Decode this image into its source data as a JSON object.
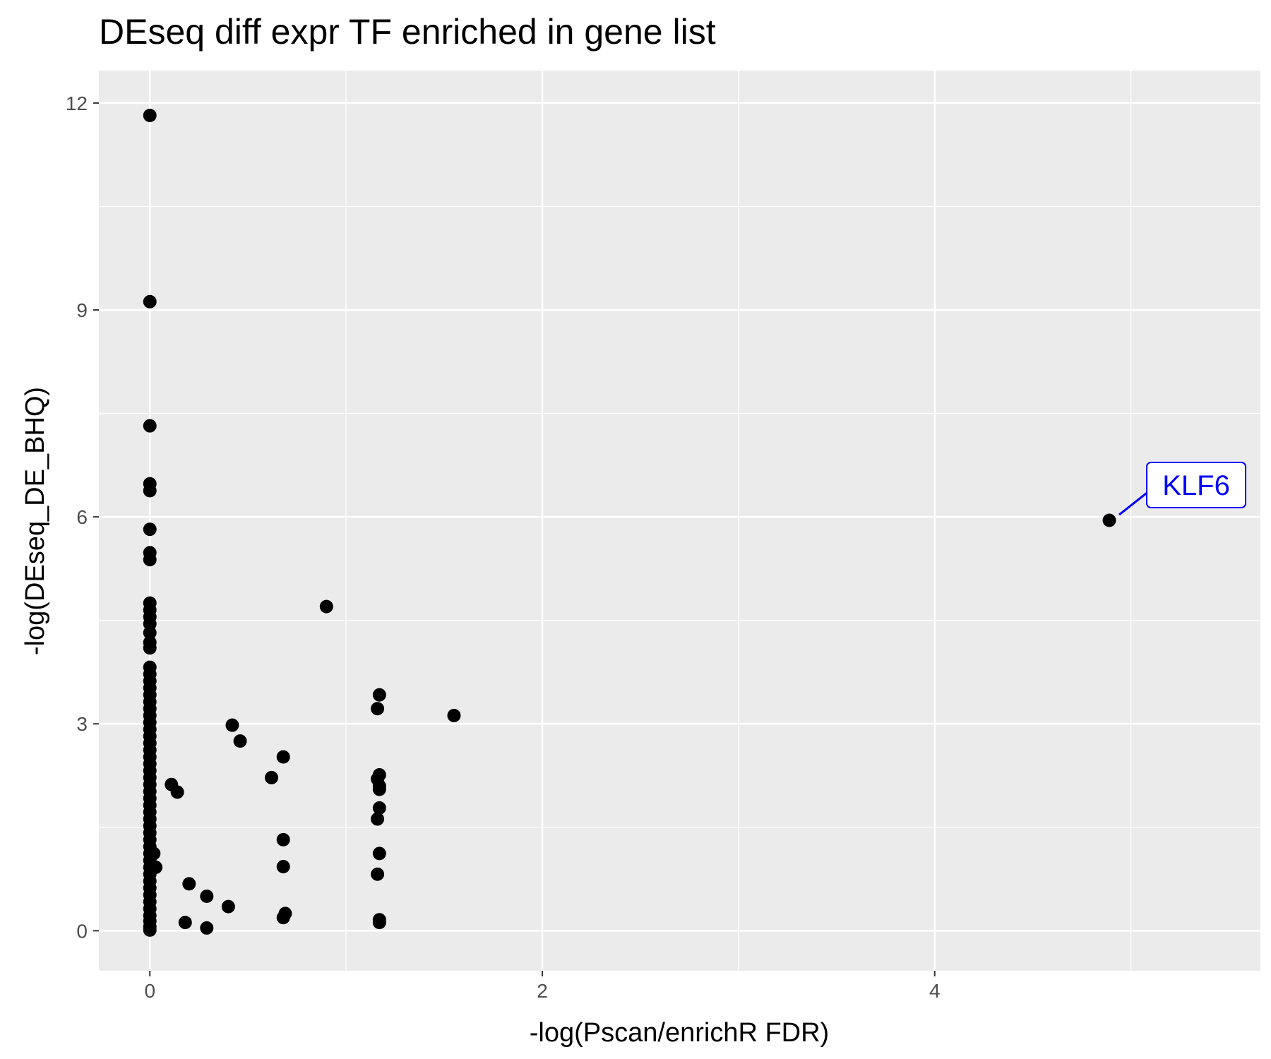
{
  "chart_data": {
    "type": "scatter",
    "title": "DEseq diff expr TF enriched in gene list",
    "xlabel": "-log(Pscan/enrichR FDR)",
    "ylabel": "-log(DEseq_DE_BHQ)",
    "xlim": [
      -0.26,
      5.66
    ],
    "ylim": [
      -0.58,
      12.47
    ],
    "xticks": [
      0,
      2,
      4
    ],
    "xtick_labels": [
      "0",
      "2",
      "4"
    ],
    "yticks": [
      0,
      3,
      6,
      9,
      12
    ],
    "ytick_labels": [
      "0",
      "3",
      "6",
      "9",
      "12"
    ],
    "grid": true,
    "legend": "none",
    "colors": {
      "panel": "#ebebeb",
      "grid": "#ffffff",
      "point": "#000000",
      "annotation": "#0000ff"
    },
    "annotations": [
      {
        "text": "KLF6",
        "x": 4.89,
        "y": 5.95
      }
    ],
    "points": [
      {
        "x": 0,
        "y": 11.82
      },
      {
        "x": 0,
        "y": 9.12
      },
      {
        "x": 0,
        "y": 7.32
      },
      {
        "x": 0,
        "y": 6.48
      },
      {
        "x": 0,
        "y": 6.38
      },
      {
        "x": 0,
        "y": 5.82
      },
      {
        "x": 0,
        "y": 5.48
      },
      {
        "x": 0,
        "y": 5.38
      },
      {
        "x": 0,
        "y": 4.75
      },
      {
        "x": 0,
        "y": 4.65
      },
      {
        "x": 0,
        "y": 4.55
      },
      {
        "x": 0,
        "y": 4.45
      },
      {
        "x": 0,
        "y": 4.32
      },
      {
        "x": 0,
        "y": 4.18
      },
      {
        "x": 0,
        "y": 4.1
      },
      {
        "x": 0,
        "y": 3.82
      },
      {
        "x": 0,
        "y": 3.72
      },
      {
        "x": 0,
        "y": 3.62
      },
      {
        "x": 0,
        "y": 3.52
      },
      {
        "x": 0,
        "y": 3.42
      },
      {
        "x": 0,
        "y": 3.32
      },
      {
        "x": 0,
        "y": 3.22
      },
      {
        "x": 0,
        "y": 3.12
      },
      {
        "x": 0,
        "y": 3.02
      },
      {
        "x": 0,
        "y": 2.92
      },
      {
        "x": 0,
        "y": 2.82
      },
      {
        "x": 0,
        "y": 2.72
      },
      {
        "x": 0,
        "y": 2.62
      },
      {
        "x": 0,
        "y": 2.52
      },
      {
        "x": 0,
        "y": 2.42
      },
      {
        "x": 0,
        "y": 2.32
      },
      {
        "x": 0,
        "y": 2.22
      },
      {
        "x": 0,
        "y": 2.12
      },
      {
        "x": 0,
        "y": 2.02
      },
      {
        "x": 0,
        "y": 1.92
      },
      {
        "x": 0,
        "y": 1.82
      },
      {
        "x": 0,
        "y": 1.72
      },
      {
        "x": 0,
        "y": 1.62
      },
      {
        "x": 0,
        "y": 1.52
      },
      {
        "x": 0,
        "y": 1.42
      },
      {
        "x": 0,
        "y": 1.32
      },
      {
        "x": 0,
        "y": 1.22
      },
      {
        "x": 0,
        "y": 1.12
      },
      {
        "x": 0,
        "y": 1.02
      },
      {
        "x": 0,
        "y": 0.92
      },
      {
        "x": 0,
        "y": 0.82
      },
      {
        "x": 0,
        "y": 0.72
      },
      {
        "x": 0,
        "y": 0.62
      },
      {
        "x": 0,
        "y": 0.52
      },
      {
        "x": 0,
        "y": 0.42
      },
      {
        "x": 0,
        "y": 0.32
      },
      {
        "x": 0,
        "y": 0.22
      },
      {
        "x": 0,
        "y": 0.14
      },
      {
        "x": 0,
        "y": 0.06
      },
      {
        "x": 0,
        "y": 0.01
      },
      {
        "x": 0.02,
        "y": 1.12
      },
      {
        "x": 0.03,
        "y": 0.92
      },
      {
        "x": 0.11,
        "y": 2.12
      },
      {
        "x": 0.14,
        "y": 2.01
      },
      {
        "x": 0.18,
        "y": 0.12
      },
      {
        "x": 0.2,
        "y": 0.68
      },
      {
        "x": 0.29,
        "y": 0.5
      },
      {
        "x": 0.29,
        "y": 0.04
      },
      {
        "x": 0.4,
        "y": 0.35
      },
      {
        "x": 0.42,
        "y": 2.98
      },
      {
        "x": 0.46,
        "y": 2.75
      },
      {
        "x": 0.62,
        "y": 2.22
      },
      {
        "x": 0.68,
        "y": 2.52
      },
      {
        "x": 0.68,
        "y": 1.32
      },
      {
        "x": 0.68,
        "y": 0.93
      },
      {
        "x": 0.69,
        "y": 0.25
      },
      {
        "x": 0.68,
        "y": 0.19
      },
      {
        "x": 0.9,
        "y": 4.7
      },
      {
        "x": 1.16,
        "y": 3.22
      },
      {
        "x": 1.17,
        "y": 3.42
      },
      {
        "x": 1.16,
        "y": 2.2
      },
      {
        "x": 1.17,
        "y": 2.26
      },
      {
        "x": 1.17,
        "y": 2.1
      },
      {
        "x": 1.17,
        "y": 2.05
      },
      {
        "x": 1.17,
        "y": 1.78
      },
      {
        "x": 1.16,
        "y": 1.62
      },
      {
        "x": 1.17,
        "y": 1.12
      },
      {
        "x": 1.16,
        "y": 0.82
      },
      {
        "x": 1.17,
        "y": 0.16
      },
      {
        "x": 1.17,
        "y": 0.12
      },
      {
        "x": 1.55,
        "y": 3.12
      },
      {
        "x": 4.89,
        "y": 5.95
      }
    ]
  }
}
